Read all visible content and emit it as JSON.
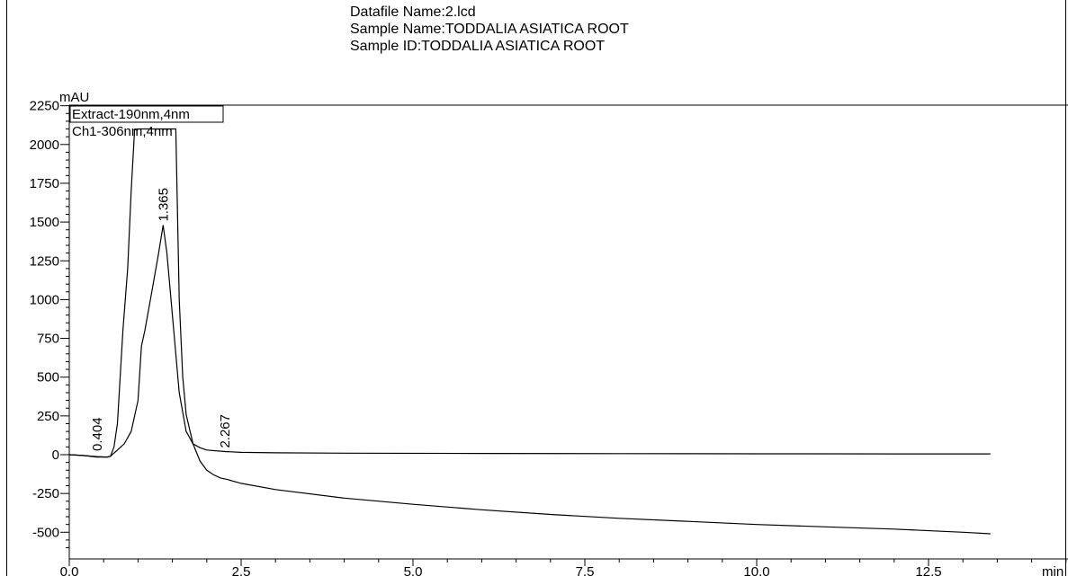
{
  "header": {
    "datafile": "Datafile Name:2.lcd",
    "sample_name": "Sample Name:TODDALIA ASIATICA ROOT",
    "sample_id": "Sample ID:TODDALIA ASIATICA ROOT"
  },
  "chart_data": {
    "type": "line",
    "ylabel": "mAU",
    "xlabel": "min",
    "xlim": [
      0.0,
      13.4
    ],
    "ylim": [
      -600,
      2250
    ],
    "y_ticks": [
      2250,
      2000,
      1750,
      1500,
      1250,
      1000,
      750,
      500,
      250,
      0,
      -250,
      -500
    ],
    "x_ticks": [
      "0.0",
      "2.5",
      "5.0",
      "7.5",
      "10.0",
      "12.5"
    ],
    "legend": [
      "Extract-190nm,4nm",
      "Ch1-306nm,4nm"
    ],
    "series": [
      {
        "name": "Extract-190nm,4nm",
        "x": [
          0.0,
          0.2,
          0.4,
          0.55,
          0.6,
          0.65,
          0.7,
          0.78,
          0.85,
          0.9,
          0.95,
          1.0,
          1.1,
          1.3,
          1.5,
          1.55,
          1.6,
          1.65,
          1.7,
          1.8,
          1.9,
          2.0,
          2.1,
          2.2,
          2.3,
          2.5,
          3.0,
          4.0,
          5.0,
          6.0,
          7.0,
          8.0,
          9.0,
          10.0,
          11.0,
          12.0,
          13.0,
          13.4
        ],
        "y": [
          0,
          -5,
          -12,
          -15,
          -10,
          50,
          200,
          800,
          1200,
          1700,
          2095,
          2100,
          2100,
          2100,
          2100,
          2100,
          1000,
          500,
          260,
          70,
          -40,
          -100,
          -130,
          -150,
          -160,
          -185,
          -225,
          -280,
          -320,
          -355,
          -385,
          -410,
          -430,
          -450,
          -465,
          -480,
          -500,
          -510
        ]
      },
      {
        "name": "Ch1-306nm,4nm",
        "x": [
          0.0,
          0.2,
          0.404,
          0.55,
          0.6,
          0.7,
          0.8,
          0.9,
          1.0,
          1.05,
          1.1,
          1.2,
          1.3,
          1.365,
          1.42,
          1.5,
          1.6,
          1.7,
          1.8,
          1.9,
          2.0,
          2.267,
          2.5,
          3.0,
          4.0,
          6.0,
          8.0,
          10.0,
          12.0,
          13.4
        ],
        "y": [
          0,
          -5,
          -15,
          -15,
          -10,
          30,
          70,
          150,
          350,
          700,
          800,
          1050,
          1300,
          1480,
          1300,
          900,
          400,
          150,
          70,
          45,
          30,
          20,
          15,
          12,
          10,
          8,
          7,
          6,
          5,
          5
        ]
      }
    ],
    "peak_labels": [
      {
        "x": 0.404,
        "y": -15,
        "label": "0.404"
      },
      {
        "x": 1.365,
        "y": 1480,
        "label": "1.365"
      },
      {
        "x": 2.267,
        "y": 20,
        "label": "2.267"
      }
    ]
  }
}
